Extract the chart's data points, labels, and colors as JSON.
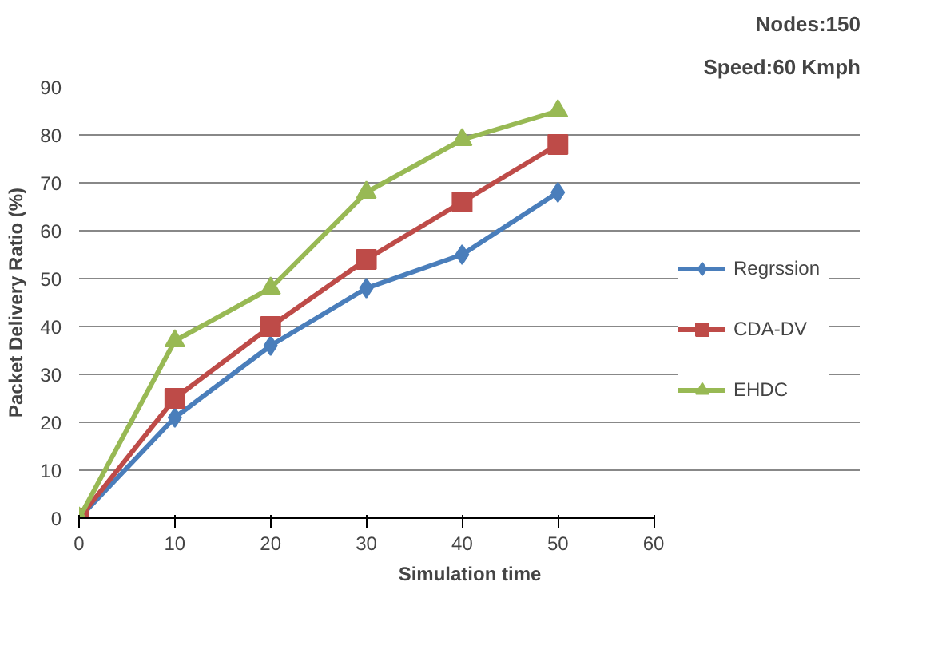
{
  "chart_data": {
    "type": "line",
    "xlabel": "Simulation time",
    "ylabel": "Packet Delivery Ratio (%)",
    "x": [
      0,
      10,
      20,
      30,
      40,
      50
    ],
    "xlim": [
      0,
      60
    ],
    "xticks": [
      0,
      10,
      20,
      30,
      40,
      50,
      60
    ],
    "ylim": [
      0,
      90
    ],
    "yticks": [
      0,
      10,
      20,
      30,
      40,
      50,
      60,
      70,
      80,
      90
    ],
    "grid": "y",
    "legend": "right",
    "annotations": [
      "Nodes:150",
      "Speed:60 Kmph"
    ],
    "series": [
      {
        "name": "Regrssion",
        "color": "#4a7ebb",
        "marker": "diamond",
        "values": [
          0,
          21,
          36,
          48,
          55,
          68
        ]
      },
      {
        "name": "CDA-DV",
        "color": "#be4b48",
        "marker": "square",
        "values": [
          0,
          25,
          40,
          54,
          66,
          78
        ]
      },
      {
        "name": "EHDC",
        "color": "#98b954",
        "marker": "triangle",
        "values": [
          0,
          37,
          48,
          68,
          79,
          85
        ]
      }
    ]
  }
}
